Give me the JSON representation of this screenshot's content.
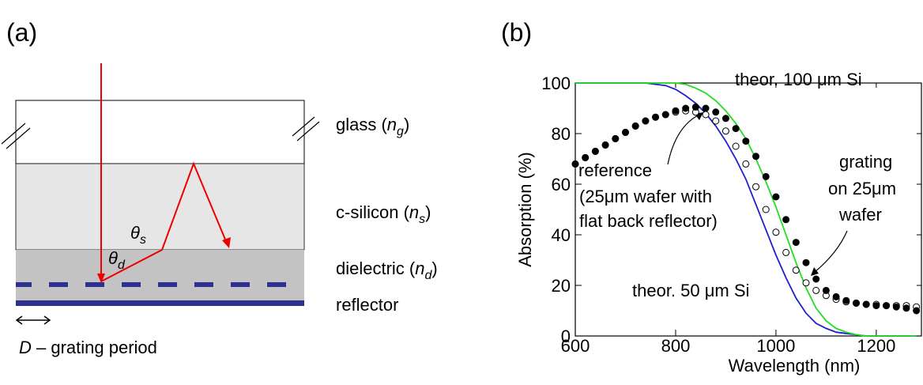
{
  "panel_labels": [
    "(a)",
    "(b)"
  ],
  "diagram": {
    "layers": [
      {
        "name": "glass (",
        "symbol": "n",
        "subscript": "g",
        "close": ")"
      },
      {
        "name": "c-silicon (",
        "symbol": "n",
        "subscript": "s",
        "close": ")"
      },
      {
        "name": "dielectric (",
        "symbol": "n",
        "subscript": "d",
        "close": ")"
      },
      {
        "name": "reflector"
      }
    ],
    "angles": [
      {
        "symbol": "θ",
        "subscript": "s"
      },
      {
        "symbol": "θ",
        "subscript": "d"
      }
    ],
    "period": {
      "symbol": "D",
      "text": " – grating period"
    }
  },
  "chart_data": {
    "type": "line",
    "xlabel": "Wavelength (nm)",
    "ylabel": "Absorption (%)",
    "xlim": [
      600,
      1290
    ],
    "ylim": [
      0,
      100
    ],
    "xticks": [
      600,
      800,
      1000,
      1200
    ],
    "yticks": [
      0,
      20,
      40,
      60,
      80,
      100
    ],
    "x": [
      600,
      620,
      640,
      660,
      680,
      700,
      720,
      740,
      760,
      780,
      800,
      820,
      840,
      860,
      880,
      900,
      920,
      940,
      960,
      980,
      1000,
      1020,
      1040,
      1060,
      1080,
      1100,
      1120,
      1140,
      1160,
      1180,
      1200,
      1220,
      1240,
      1260,
      1280
    ],
    "series": [
      {
        "name": "theor. 50 μm Si",
        "color": "#1f1fd0",
        "style": "line",
        "values": [
          100,
          100,
          100,
          100,
          100,
          100,
          100,
          100,
          99.5,
          99,
          97.5,
          95,
          92,
          88,
          83,
          77,
          70,
          62,
          52,
          42,
          32,
          23,
          15,
          9,
          5,
          3,
          1.5,
          1,
          0.5,
          0,
          0,
          0,
          0,
          0,
          0
        ]
      },
      {
        "name": "theor. 100 μm Si",
        "color": "#22dd22",
        "style": "line",
        "values": [
          100,
          100,
          100,
          100,
          100,
          100,
          100,
          100,
          100,
          100,
          100,
          99.5,
          98,
          96,
          93,
          89,
          84,
          78,
          70,
          61,
          51,
          40,
          29,
          19,
          11,
          6,
          3,
          1.5,
          0.5,
          0,
          0,
          0,
          0,
          0,
          0
        ]
      },
      {
        "name": "reference",
        "color": "#000000",
        "style": "open",
        "values": [
          68,
          70.5,
          73,
          75.5,
          78,
          80.5,
          83,
          85,
          86.5,
          87.5,
          88.5,
          89,
          88.5,
          87.5,
          85,
          81,
          75,
          68,
          59,
          50,
          41,
          33,
          26,
          21,
          18,
          16,
          14.5,
          13.5,
          13,
          12.5,
          12.5,
          12,
          12,
          12,
          11.5
        ]
      },
      {
        "name": "grating",
        "color": "#000000",
        "style": "filled",
        "values": [
          68,
          70.5,
          73,
          75.5,
          78,
          80.5,
          83,
          85,
          86.5,
          87.5,
          89,
          90,
          90.5,
          90,
          88.5,
          86,
          82,
          77,
          71,
          63,
          55,
          46,
          37,
          29,
          22.5,
          18,
          15.5,
          14,
          13,
          12.5,
          12,
          12,
          11.5,
          11,
          10
        ]
      }
    ],
    "annotations": [
      "(25μm wafer with",
      "flat back reflector)",
      "on 25μm",
      "wafer"
    ]
  }
}
